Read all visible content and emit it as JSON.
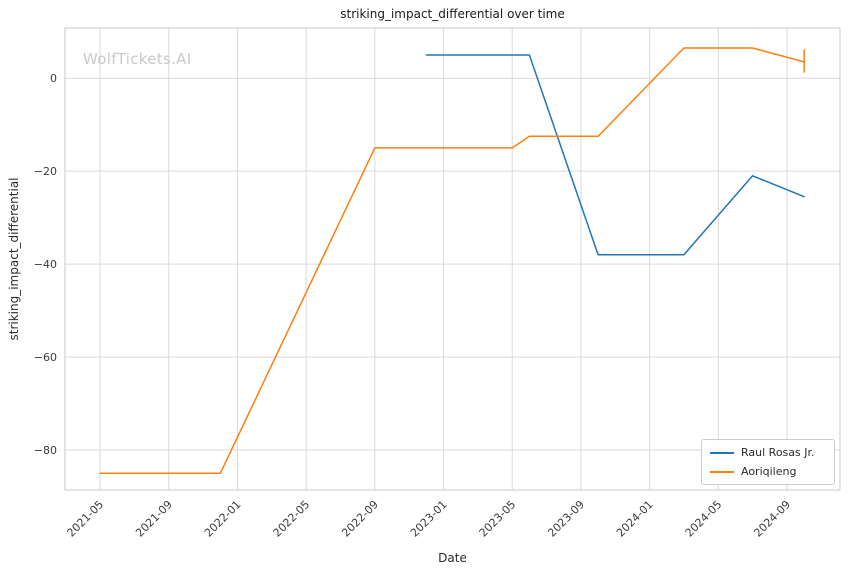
{
  "chart_data": {
    "type": "line",
    "title": "striking_impact_differential over time",
    "xlabel": "Date",
    "ylabel": "striking_impact_differential",
    "watermark": "WolfTickets.AI",
    "grid": true,
    "legend_position": "lower right",
    "x_ticks": [
      "2021-05",
      "2021-09",
      "2022-01",
      "2022-05",
      "2022-09",
      "2023-01",
      "2023-05",
      "2023-09",
      "2024-01",
      "2024-05",
      "2024-09"
    ],
    "y_ticks": [
      {
        "label": "0",
        "value": 0
      },
      {
        "label": "−20",
        "value": -20
      },
      {
        "label": "−40",
        "value": -40
      },
      {
        "label": "−60",
        "value": -60
      },
      {
        "label": "−80",
        "value": -80
      }
    ],
    "x_range": [
      2021.163,
      2024.924
    ],
    "y_range": [
      -88.6,
      10.8
    ],
    "colors": {
      "background": "#ffffff",
      "grid": "#d9d9d9",
      "spine": "#c8c8c8",
      "tick_text": "#3b3b3b",
      "title_text": "#1a1a1a",
      "watermark": "#c9c9c9"
    },
    "series": [
      {
        "name": "Raul Rosas Jr.",
        "color": "#1f77b4",
        "points": [
          {
            "date": "2022-12",
            "value": 5
          },
          {
            "date": "2023-06",
            "value": 5
          },
          {
            "date": "2023-10",
            "value": -38
          },
          {
            "date": "2024-03",
            "value": -38
          },
          {
            "date": "2024-07",
            "value": -21
          },
          {
            "date": "2024-10",
            "value": -25.5
          }
        ]
      },
      {
        "name": "Aoriqileng",
        "color": "#ff7f0e",
        "points": [
          {
            "date": "2021-05",
            "value": -85
          },
          {
            "date": "2021-12",
            "value": -85
          },
          {
            "date": "2022-09",
            "value": -15
          },
          {
            "date": "2023-05",
            "value": -15
          },
          {
            "date": "2023-06",
            "value": -12.5
          },
          {
            "date": "2023-10",
            "value": -12.5
          },
          {
            "date": "2024-03",
            "value": 6.5
          },
          {
            "date": "2024-07",
            "value": 6.5
          },
          {
            "date": "2024-10",
            "value": 3.5
          }
        ],
        "errorbar": {
          "date": "2024-10",
          "low": 1.2,
          "high": 6.2
        }
      }
    ]
  }
}
